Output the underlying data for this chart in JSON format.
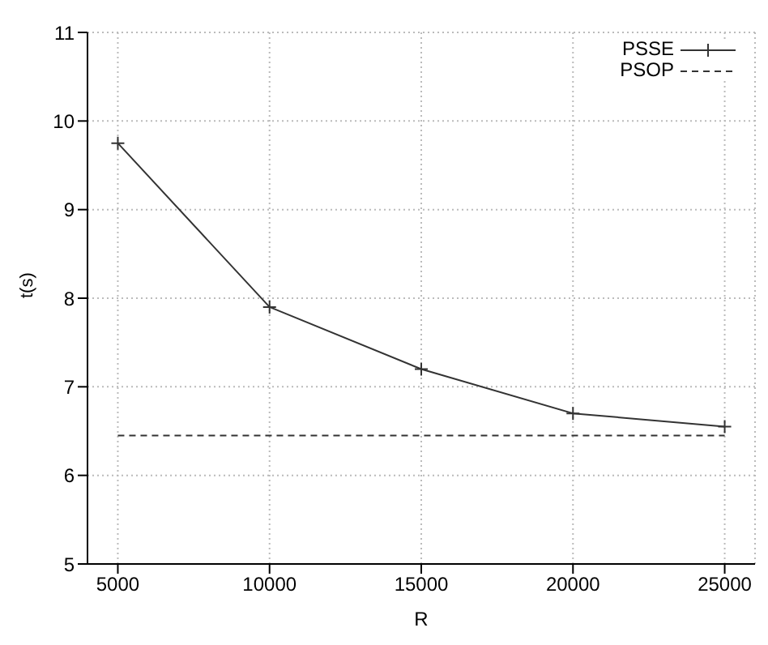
{
  "chart_data": {
    "type": "line",
    "xlabel": "R",
    "ylabel": "t(s)",
    "x": [
      5000,
      10000,
      15000,
      20000,
      25000
    ],
    "series": [
      {
        "name": "PSSE",
        "color": "#333333",
        "values": [
          9.75,
          7.9,
          7.2,
          6.7,
          6.55
        ],
        "marker": "cross",
        "line_style": "solid"
      },
      {
        "name": "PSOP",
        "color": "#333333",
        "values": [
          6.45,
          6.45,
          6.45,
          6.45,
          6.45
        ],
        "marker": "none",
        "line_style": "dashed"
      }
    ],
    "xlim": [
      4000,
      26000
    ],
    "xticks": [
      5000,
      10000,
      15000,
      20000,
      25000
    ],
    "ylim": [
      5,
      11
    ],
    "yticks": [
      5,
      6,
      7,
      8,
      9,
      10,
      11
    ],
    "grid": true,
    "legend": "top right"
  }
}
